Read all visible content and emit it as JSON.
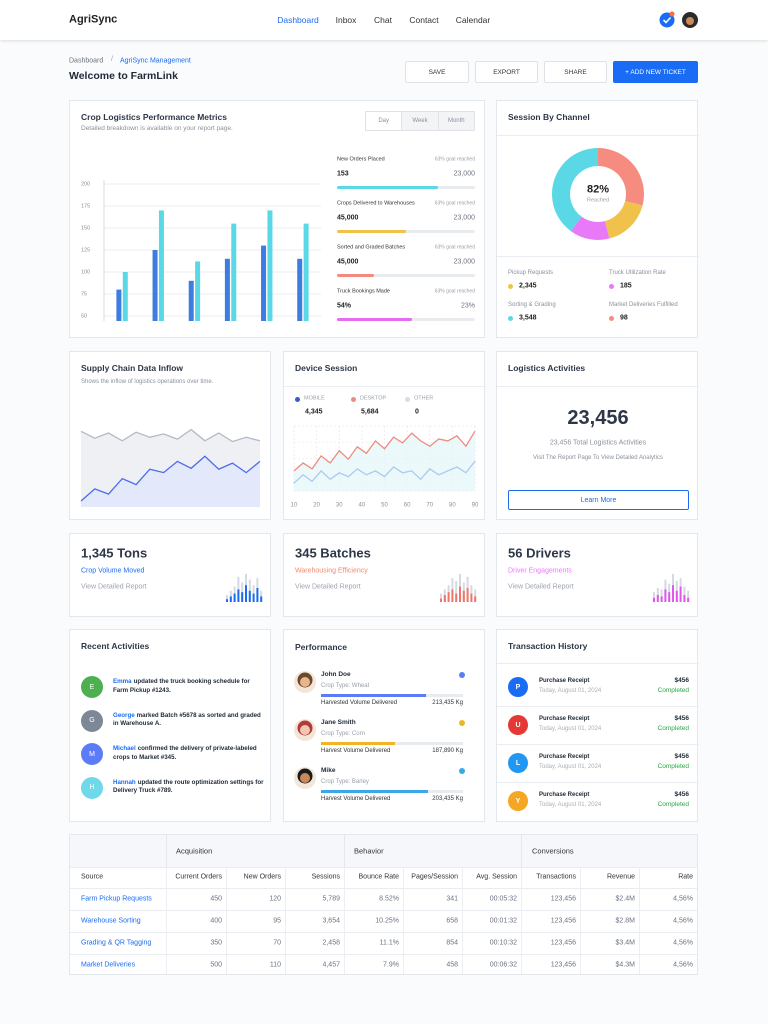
{
  "nav": {
    "brand": "AgriSync",
    "links": [
      "Dashboard",
      "Inbox",
      "Chat",
      "Contact",
      "Calendar"
    ]
  },
  "header": {
    "breadcrumb": [
      "Dashboard",
      "AgriSync Management"
    ],
    "title": "Welcome to FarmLink",
    "buttons": [
      "SAVE",
      "EXPORT",
      "SHARE",
      "+ ADD NEW TICKET"
    ]
  },
  "crop_metrics": {
    "title": "Crop Logistics Performance Metrics",
    "subtitle": "Detailed breakdown is available on your report page.",
    "tabs": [
      "Day",
      "Week",
      "Month"
    ],
    "chart": {
      "type": "bar",
      "ylim": [
        50,
        200
      ],
      "yticks": [
        50,
        75,
        100,
        125,
        150,
        175,
        200
      ],
      "grid": true,
      "series": [
        {
          "color": "#3e7de0",
          "values": [
            80,
            125,
            90,
            115,
            130,
            115
          ]
        },
        {
          "color": "#5ad8e6",
          "values": [
            100,
            170,
            112,
            155,
            170,
            155
          ]
        }
      ]
    },
    "metrics": [
      {
        "label": "New Orders Placed",
        "goal": "63% goal reached",
        "value": "153",
        "target": "23,000",
        "progress": 73,
        "color": "#5ad8e6"
      },
      {
        "label": "Crops Delivered to Warehouses",
        "goal": "63% goal reached",
        "value": "45,000",
        "target": "23,000",
        "progress": 50,
        "color": "#f0c24b"
      },
      {
        "label": "Sorted and Graded Batches",
        "goal": "63% goal reached",
        "value": "45,000",
        "target": "23,000",
        "progress": 27,
        "color": "#f48a7f"
      },
      {
        "label": "Truck Bookings Made",
        "goal": "63% goal reached",
        "value": "54%",
        "target": "23%",
        "progress": 54,
        "color": "#e56bf0"
      }
    ]
  },
  "session": {
    "title": "Session By Channel",
    "center_value": "82%",
    "center_label": "Reached",
    "chart": {
      "type": "donut",
      "values": [
        29,
        17,
        14,
        40
      ],
      "colors": [
        "#f68b7f",
        "#f0c24b",
        "#e879f9",
        "#5ad8e6"
      ]
    },
    "legend": [
      {
        "label": "Pickup Requests",
        "value": "2,345",
        "color": "#f0c24b"
      },
      {
        "label": "Truck Utilization Rate",
        "value": "185",
        "color": "#e879f9"
      },
      {
        "label": "Sorting & Grading",
        "value": "3,548",
        "color": "#5ad8e6"
      },
      {
        "label": "Market Deliveries Fulfilled",
        "value": "98",
        "color": "#f68b7f"
      }
    ]
  },
  "supply": {
    "title": "Supply Chain Data Inflow",
    "subtitle": "Shows the inflow of logistics operations over time.",
    "chart": {
      "type": "area",
      "ylim": [
        0,
        100
      ],
      "series": [
        {
          "color": "#b5b9c4",
          "fill": "#eceef2",
          "values": [
            88,
            80,
            86,
            77,
            87,
            81,
            85,
            79,
            90,
            77,
            86,
            76,
            81,
            77
          ]
        },
        {
          "color": "#4a6cf0",
          "fill": "#e2e7fc",
          "values": [
            7,
            21,
            15,
            33,
            26,
            44,
            40,
            53,
            45,
            59,
            44,
            51,
            40,
            53
          ]
        }
      ]
    }
  },
  "device": {
    "title": "Device Session",
    "chart": {
      "type": "line",
      "xlim": [
        10,
        90
      ],
      "xticks": [
        10,
        20,
        30,
        40,
        50,
        60,
        70,
        80,
        90
      ],
      "ylim": [
        0,
        100
      ],
      "x": [
        10,
        14,
        18,
        22,
        26,
        30,
        34,
        38,
        42,
        46,
        50,
        54,
        58,
        62,
        66,
        70,
        74,
        78,
        82,
        86,
        90
      ],
      "series": [
        {
          "name": "MOBILE",
          "color": "#2f5fd8",
          "total": "4,345",
          "values": [
            12,
            25,
            15,
            31,
            18,
            28,
            22,
            34,
            25,
            31,
            22,
            37,
            28,
            31,
            18,
            34,
            25,
            31,
            37,
            28,
            46
          ]
        },
        {
          "name": "DESKTOP",
          "color": "#f08a7e",
          "total": "5,684",
          "values": [
            31,
            43,
            34,
            54,
            43,
            62,
            49,
            68,
            58,
            77,
            65,
            83,
            74,
            89,
            77,
            69,
            80,
            77,
            85,
            69,
            92
          ]
        },
        {
          "name": "OTHER",
          "color": "#d9dce3",
          "total": "0"
        }
      ]
    }
  },
  "logistics": {
    "title": "Logistics Activities",
    "value": "23,456",
    "description": "23,456 Total Logistics Activities",
    "note": "Visit The Report Page To View Detailed Analytics",
    "button": "Learn More"
  },
  "stats": [
    {
      "value": "1,345 Tons",
      "label": "Crop Volume Moved",
      "color": "#1a6cf5",
      "link": "View Detailed Report",
      "chart": {
        "type": "bar",
        "ylim": [
          0,
          100
        ],
        "series": [
          {
            "color": "#d5d9e1",
            "values": [
              25,
              40,
              55,
              90,
              70,
              100,
              80,
              60,
              85,
              40
            ]
          },
          {
            "color": "#1a6cf5",
            "values": [
              10,
              20,
              30,
              45,
              35,
              60,
              40,
              30,
              50,
              20
            ]
          }
        ]
      }
    },
    {
      "value": "345 Batches",
      "label": "Warehousing Efficiency",
      "color": "#f08a6c",
      "link": "View Detailed Report",
      "chart": {
        "type": "bar",
        "ylim": [
          0,
          100
        ],
        "series": [
          {
            "color": "#d5d9e1",
            "values": [
              30,
              45,
              60,
              85,
              75,
              100,
              70,
              90,
              60,
              45
            ]
          },
          {
            "color": "#f0766a",
            "values": [
              12,
              25,
              35,
              45,
              30,
              55,
              40,
              50,
              30,
              20
            ]
          }
        ]
      }
    },
    {
      "value": "56 Drivers",
      "label": "Driver Engagements",
      "color": "#e879f9",
      "link": "View Detailed Report",
      "chart": {
        "type": "bar",
        "ylim": [
          0,
          100
        ],
        "series": [
          {
            "color": "#d5d9e1",
            "values": [
              35,
              50,
              45,
              80,
              65,
              100,
              75,
              85,
              55,
              40
            ]
          },
          {
            "color": "#e056ef",
            "values": [
              15,
              25,
              20,
              45,
              35,
              60,
              40,
              55,
              25,
              15
            ]
          }
        ]
      }
    }
  ],
  "activities": {
    "title": "Recent Activities",
    "items": [
      {
        "initial": "E",
        "name": "Emma",
        "text": "updated the truck booking schedule for Farm Pickup #1243.",
        "color": "#4caf50"
      },
      {
        "initial": "G",
        "name": "George",
        "text": "marked Batch #5678 as sorted and graded in Warehouse A.",
        "color": "#7d8896"
      },
      {
        "initial": "M",
        "name": "Michael",
        "text": "confirmed the delivery of private-labeled crops to Market #345.",
        "color": "#5b7cf6"
      },
      {
        "initial": "H",
        "name": "Hannah",
        "text": "updated the route optimization settings for Delivery Truck #789.",
        "color": "#6fd8ea"
      }
    ]
  },
  "performance": {
    "title": "Performance",
    "items": [
      {
        "name": "John Doe",
        "crop": "Crop Type: Wheat",
        "metric": "Harvested Volume Delivered",
        "value": "213,435 Kg",
        "progress": 74,
        "color": "#5b7cf6"
      },
      {
        "name": "Jane Smith",
        "crop": "Crop Type: Corn",
        "metric": "Harvest Volume Delivered",
        "value": "187,890 Kg",
        "progress": 52,
        "color": "#f0b429"
      },
      {
        "name": "Mike",
        "crop": "Crop Type: Barley",
        "metric": "Harvest Volume Delivered",
        "value": "203,435 Kg",
        "progress": 75,
        "color": "#3aa8e8"
      }
    ]
  },
  "transactions": {
    "title": "Transaction History",
    "items": [
      {
        "initial": "P",
        "title": "Purchase Receipt",
        "date": "Today, August 01, 2024",
        "amount": "$456",
        "status": "Completed",
        "color": "#1a6cf5"
      },
      {
        "initial": "U",
        "title": "Purchase Receipt",
        "date": "Today, August 01, 2024",
        "amount": "$456",
        "status": "Completed",
        "color": "#e53935"
      },
      {
        "initial": "L",
        "title": "Purchase Receipt",
        "date": "Today, August 01, 2024",
        "amount": "$456",
        "status": "Completed",
        "color": "#2196f3"
      },
      {
        "initial": "Y",
        "title": "Purchase Receipt",
        "date": "Today, August 01, 2024",
        "amount": "$456",
        "status": "Completed",
        "color": "#f5a623"
      }
    ]
  },
  "table": {
    "groups": [
      "Acquisition",
      "Behavior",
      "Conversions"
    ],
    "columns": [
      "Source",
      "Current Orders",
      "New Orders",
      "Sessions",
      "Bounce Rate",
      "Pages/Session",
      "Avg. Session",
      "Transactions",
      "Revenue",
      "Rate"
    ],
    "rows": [
      [
        "Farm Pickup Requests",
        "450",
        "120",
        "5,789",
        "8.52%",
        "341",
        "00:05:32",
        "123,456",
        "$2.4M",
        "4,56%"
      ],
      [
        "Warehouse Sorting",
        "400",
        "95",
        "3,654",
        "10.25%",
        "658",
        "00:01:32",
        "123,456",
        "$2.8M",
        "4,56%"
      ],
      [
        "Grading & QR Tagging",
        "350",
        "70",
        "2,458",
        "11.1%",
        "854",
        "00:10:32",
        "123,456",
        "$3.4M",
        "4,56%"
      ],
      [
        "Market Deliveries",
        "500",
        "110",
        "4,457",
        "7.9%",
        "458",
        "00:06:32",
        "123,456",
        "$4.3M",
        "4,56%"
      ]
    ]
  }
}
